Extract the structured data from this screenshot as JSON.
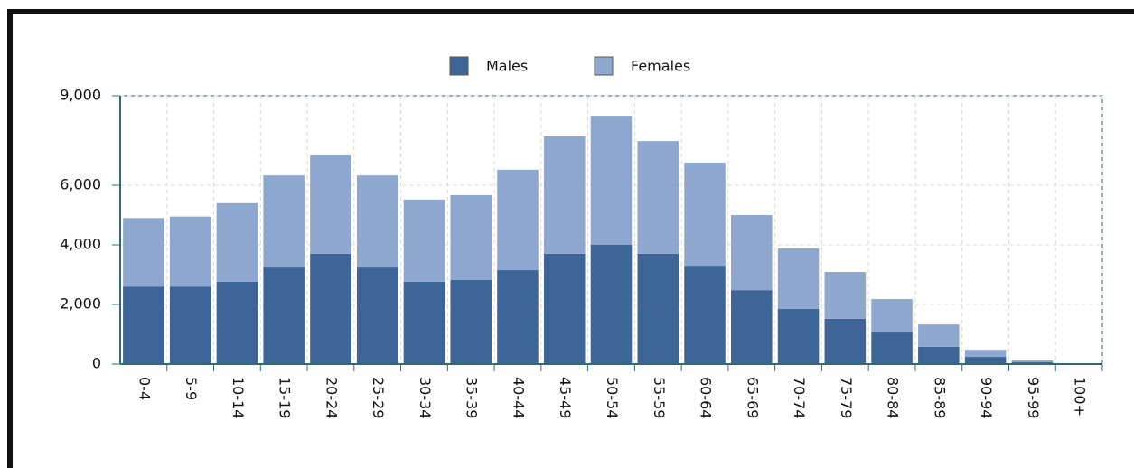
{
  "chart_data": {
    "type": "stacked_bar",
    "categories": [
      "0-4",
      "5-9",
      "10-14",
      "15-19",
      "20-24",
      "25-29",
      "30-34",
      "35-39",
      "40-44",
      "45-49",
      "50-54",
      "55-59",
      "60-64",
      "65-69",
      "70-74",
      "75-79",
      "80-84",
      "85-89",
      "90-94",
      "95-99",
      "100+"
    ],
    "series": [
      {
        "name": "Males",
        "color": "#3d6597",
        "values": [
          2600,
          2600,
          2760,
          3240,
          3700,
          3240,
          2760,
          2820,
          3150,
          3700,
          4000,
          3700,
          3300,
          2480,
          1850,
          1520,
          1060,
          580,
          240,
          60,
          10
        ]
      },
      {
        "name": "Females",
        "color": "#8ea7cf",
        "values": [
          2300,
          2350,
          2640,
          3090,
          3300,
          3090,
          2760,
          2850,
          3370,
          3940,
          4330,
          3780,
          3460,
          2520,
          2030,
          1570,
          1120,
          750,
          240,
          60,
          10
        ]
      }
    ],
    "ylim": [
      0,
      9000
    ],
    "yticks": [
      0,
      {
        "value": 2000,
        "label": "2,000"
      },
      {
        "value": 4000,
        "label": "4,000"
      },
      {
        "value": 6000,
        "label": "6,000"
      },
      {
        "value": 9000,
        "label": "9,000"
      }
    ],
    "grid": true,
    "legend": "top"
  }
}
